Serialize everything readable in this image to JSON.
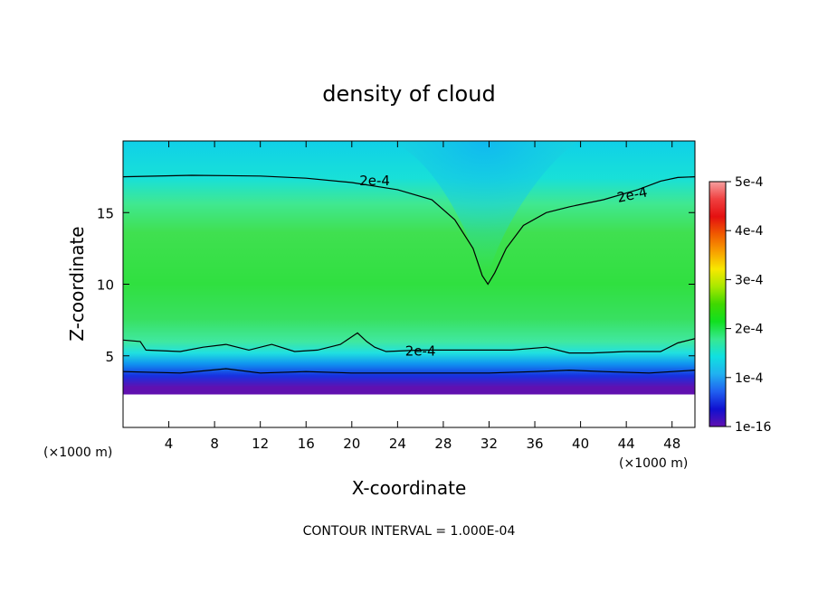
{
  "chart_data": {
    "type": "heatmap",
    "title": "density of cloud",
    "xlabel": "X-coordinate",
    "ylabel": "Z-coordinate",
    "x_unit_left": "(×1000 m)",
    "x_unit_right": "(×1000 m)",
    "xlim": [
      0,
      50
    ],
    "ylim": [
      0,
      20
    ],
    "x_ticks": [
      "4",
      "8",
      "12",
      "16",
      "20",
      "24",
      "28",
      "32",
      "36",
      "40",
      "44",
      "48"
    ],
    "x_tick_values": [
      4,
      8,
      12,
      16,
      20,
      24,
      28,
      32,
      36,
      40,
      44,
      48
    ],
    "y_ticks": [
      "5",
      "10",
      "15"
    ],
    "y_tick_values": [
      5,
      10,
      15
    ],
    "colorbar": {
      "labels": [
        "5e-4",
        "4e-4",
        "3e-4",
        "2e-4",
        "1e-4",
        "1e-16"
      ],
      "values": [
        0.0005,
        0.0004,
        0.0003,
        0.0002,
        0.0001,
        1e-16
      ],
      "colors": [
        "#f6a0a0",
        "#f04040",
        "#e41010",
        "#f05a00",
        "#f8a000",
        "#f8e800",
        "#a8e800",
        "#40d800",
        "#10e020",
        "#38e890",
        "#10e0e0",
        "#20b0f0",
        "#2060f0",
        "#1010d0",
        "#6010b0"
      ]
    },
    "contour_labels": [
      "2e-4",
      "2e-4",
      "2e-4"
    ],
    "contour_level": 0.0002,
    "contour_lines": [
      {
        "level": 0.0002,
        "points": [
          [
            0,
            17.5
          ],
          [
            6,
            17.6
          ],
          [
            12,
            17.55
          ],
          [
            16,
            17.4
          ],
          [
            20,
            17.1
          ],
          [
            24,
            16.6
          ],
          [
            27,
            15.9
          ],
          [
            29,
            14.5
          ],
          [
            30.6,
            12.5
          ],
          [
            31.4,
            10.6
          ],
          [
            31.9,
            10.0
          ],
          [
            32.5,
            10.8
          ],
          [
            33.5,
            12.5
          ],
          [
            35,
            14.1
          ],
          [
            37,
            15.0
          ],
          [
            39,
            15.4
          ],
          [
            42,
            15.9
          ],
          [
            45,
            16.6
          ],
          [
            47,
            17.2
          ],
          [
            48.5,
            17.45
          ],
          [
            50,
            17.5
          ]
        ]
      },
      {
        "level": 0.0002,
        "points": [
          [
            0,
            6.1
          ],
          [
            1.5,
            6.0
          ],
          [
            2,
            5.4
          ],
          [
            5,
            5.3
          ],
          [
            7,
            5.6
          ],
          [
            9,
            5.8
          ],
          [
            11,
            5.4
          ],
          [
            13,
            5.8
          ],
          [
            15,
            5.3
          ],
          [
            17,
            5.4
          ],
          [
            19,
            5.8
          ],
          [
            20.5,
            6.6
          ],
          [
            21.3,
            6.0
          ],
          [
            22,
            5.6
          ],
          [
            23,
            5.3
          ],
          [
            26,
            5.4
          ],
          [
            30,
            5.4
          ],
          [
            34,
            5.4
          ],
          [
            37,
            5.6
          ],
          [
            39,
            5.2
          ],
          [
            41,
            5.2
          ],
          [
            44,
            5.3
          ],
          [
            47,
            5.3
          ],
          [
            48.5,
            5.9
          ],
          [
            50,
            6.2
          ]
        ]
      },
      {
        "level": 0.0001,
        "points": [
          [
            0,
            3.9
          ],
          [
            5,
            3.8
          ],
          [
            9,
            4.1
          ],
          [
            12,
            3.8
          ],
          [
            16,
            3.9
          ],
          [
            20,
            3.8
          ],
          [
            26,
            3.8
          ],
          [
            32,
            3.8
          ],
          [
            36,
            3.9
          ],
          [
            39,
            4.0
          ],
          [
            42,
            3.9
          ],
          [
            46,
            3.8
          ],
          [
            50,
            4.0
          ]
        ]
      }
    ],
    "annotation": "CONTOUR INTERVAL = 1.000E-04"
  }
}
